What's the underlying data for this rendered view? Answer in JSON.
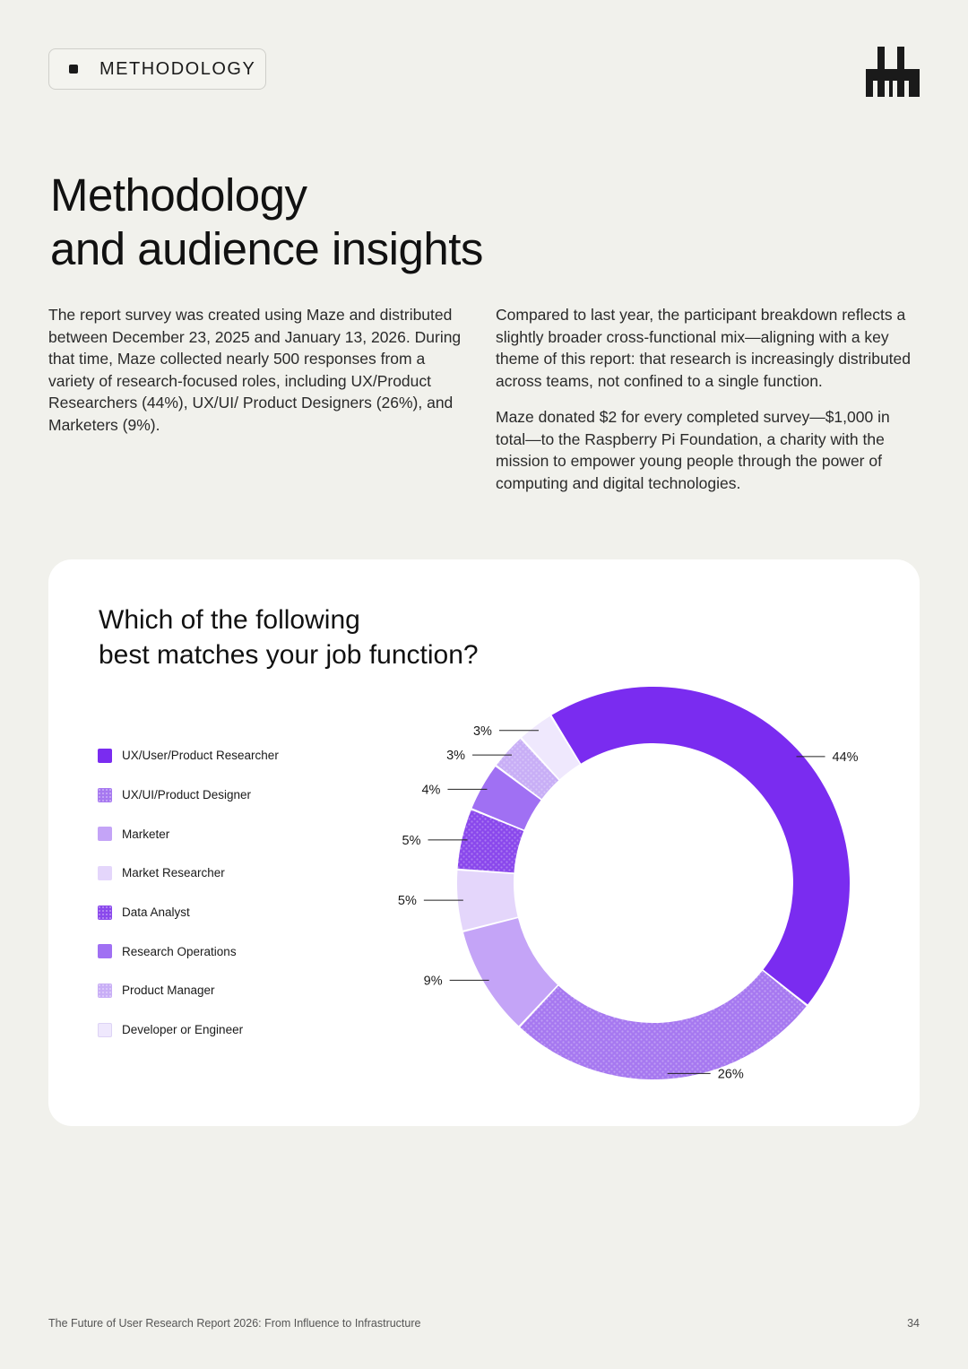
{
  "header": {
    "badge_label": "METHODOLOGY",
    "logo_icon": "bars-logo-icon"
  },
  "page_title": {
    "line1": "Methodology",
    "line2": "and audience insights"
  },
  "body_left": {
    "paragraph1": "The report survey was created using Maze and distributed between December 23, 2025 and January 13, 2026. During that time, Maze collected nearly 500 responses from a variety of research-focused roles, including UX/Product Researchers (44%), UX/UI/ Product Designers (26%), and Marketers (9%)."
  },
  "body_right": {
    "paragraph1": "Compared to last year, the participant breakdown reflects a slightly broader cross-functional mix—aligning with a key theme of this report: that research is increasingly distributed across teams, not confined to a single function.",
    "paragraph2": "Maze donated $2 for every completed survey—$1,000 in total—to the Raspberry Pi Foundation, a charity with the mission to empower young people through the power of computing and digital technologies."
  },
  "chart_data": {
    "type": "pie",
    "title_line1": "Which of the following",
    "title_line2": "best matches your job function?",
    "legend_position": "left",
    "categories": [
      "UX/User/Product Researcher",
      "UX/UI/Product Designer",
      "Marketer",
      "Market Researcher",
      "Data Analyst",
      "Research Operations",
      "Product Manager",
      "Developer or Engineer"
    ],
    "values": [
      44,
      26,
      9,
      5,
      5,
      4,
      3,
      3
    ],
    "value_labels": [
      "44%",
      "26%",
      "9%",
      "5%",
      "5%",
      "4%",
      "3%",
      "3%"
    ],
    "colors": [
      "#7a2cf0",
      "#a678f0",
      "#c4a4f7",
      "#e4d6fb",
      "#8a48ec",
      "#a070f3",
      "#c8aef6",
      "#efe8fd"
    ],
    "patterned": [
      false,
      true,
      false,
      false,
      true,
      false,
      true,
      false
    ]
  },
  "footer": {
    "text": "The Future of User Research Report 2026: From Influence to Infrastructure",
    "page_number": "34"
  }
}
